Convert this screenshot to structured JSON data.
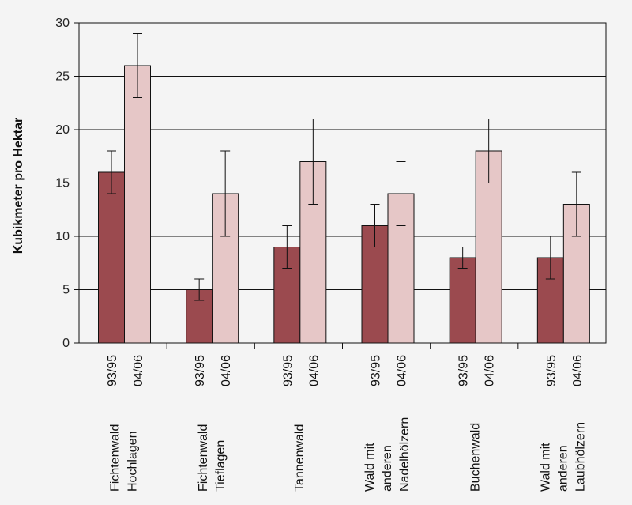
{
  "chart_data": {
    "type": "bar",
    "ylabel": "Kubikmeter pro Hektar",
    "ylim": [
      0,
      30
    ],
    "yticks": [
      0,
      5,
      10,
      15,
      20,
      25,
      30
    ],
    "grid": true,
    "categories": [
      [
        "Fichtenwald",
        "Hochlagen"
      ],
      [
        "Fichtenwald",
        "Tieflagen"
      ],
      [
        "Tannenwald"
      ],
      [
        "Wald mit",
        "anderen",
        "Nadelhölzern"
      ],
      [
        "Buchenwald"
      ],
      [
        "Wald mit",
        "anderen",
        "Laubhölzern"
      ]
    ],
    "series": [
      {
        "name": "93/95",
        "color": "#9b4a4f",
        "values": [
          16,
          5,
          9,
          11,
          8,
          8
        ],
        "err_low": [
          14,
          4,
          7,
          9,
          7,
          6
        ],
        "err_high": [
          18,
          6,
          11,
          13,
          9,
          10
        ]
      },
      {
        "name": "04/06",
        "color": "#e6c7c7",
        "values": [
          26,
          14,
          17,
          14,
          18,
          13
        ],
        "err_low": [
          23,
          10,
          13,
          11,
          15,
          10
        ],
        "err_high": [
          29,
          18,
          21,
          17,
          21,
          16
        ]
      }
    ]
  }
}
